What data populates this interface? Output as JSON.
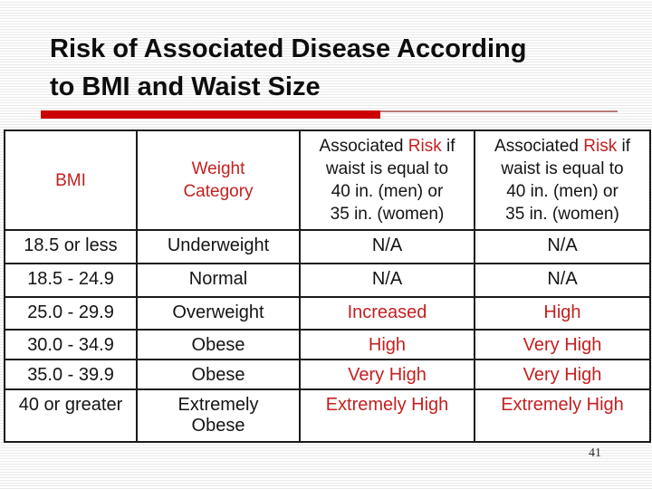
{
  "slide": {
    "title": "Risk of Associated Disease According\nto BMI and Waist Size",
    "page_number": "41"
  },
  "colors": {
    "red_text": "#c42020",
    "black_text": "#141414",
    "accent_bar": "#cc0000",
    "accent_thin_line": "#b97a7a",
    "table_border": "#1a1a1a",
    "stripe": "#e9e9e9"
  },
  "table": {
    "headers": {
      "bmi": "BMI",
      "weight_category": "Weight\nCategory",
      "risk_col3": {
        "pre": "Associated ",
        "highlight": "Risk",
        "post": " if\nwaist is equal to\n40 in. (men) or\n35 in. (women)"
      },
      "risk_col4": {
        "pre": "Associated ",
        "highlight": "Risk",
        "post": " if\nwaist is equal to\n40 in. (men) or\n35 in. (women)"
      }
    },
    "rows": [
      {
        "bmi": "18.5 or less",
        "category": "Underweight",
        "risk_40": "N/A",
        "risk_35": "N/A",
        "risk_color": "#141414"
      },
      {
        "bmi": "18.5 - 24.9",
        "category": "Normal",
        "risk_40": "N/A",
        "risk_35": "N/A",
        "risk_color": "#141414"
      },
      {
        "bmi": "25.0 - 29.9",
        "category": "Overweight",
        "risk_40": "Increased",
        "risk_35": "High",
        "risk_color": "#c42020"
      },
      {
        "bmi": "30.0 - 34.9",
        "category": "Obese",
        "risk_40": "High",
        "risk_35": "Very High",
        "risk_color": "#c42020"
      },
      {
        "bmi": "35.0 - 39.9",
        "category": "Obese",
        "risk_40": "Very High",
        "risk_35": "Very High",
        "risk_color": "#c42020"
      },
      {
        "bmi": "40 or greater",
        "category": "Extremely\nObese",
        "risk_40": "Extremely High",
        "risk_35": "Extremely High",
        "risk_color": "#c42020"
      }
    ]
  }
}
